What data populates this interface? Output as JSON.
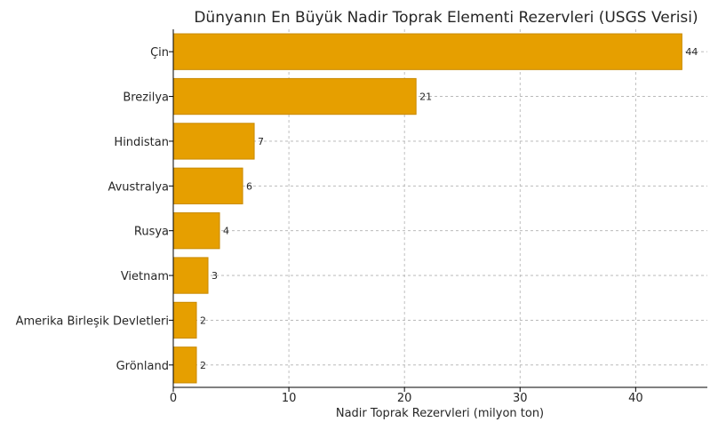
{
  "chart_data": {
    "type": "bar",
    "orientation": "horizontal",
    "title": "Dünyanın En Büyük Nadir Toprak Elementi Rezervleri (USGS Verisi)",
    "xlabel": "Nadir Toprak Rezervleri (milyon ton)",
    "ylabel": "",
    "categories": [
      "Çin",
      "Brezilya",
      "Hindistan",
      "Avustralya",
      "Rusya",
      "Vietnam",
      "Amerika Birleşik Devletleri",
      "Grönland"
    ],
    "values": [
      44,
      21,
      7,
      6,
      4,
      3,
      2,
      2
    ],
    "value_labels": [
      "44",
      "21",
      "7",
      "6",
      "4",
      "3",
      "2",
      "2"
    ],
    "xticks": [
      0,
      10,
      20,
      30,
      40
    ],
    "xtick_labels": [
      "0",
      "10",
      "20",
      "30",
      "40"
    ],
    "xlim": [
      0,
      46.2
    ],
    "grid": true,
    "bar_color": "#E69F00",
    "bar_edge_color": "#C98A00"
  }
}
